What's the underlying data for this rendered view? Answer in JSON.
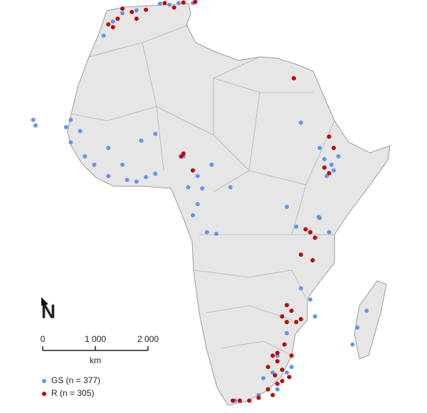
{
  "map": {
    "north_label": "N",
    "scale_bar": {
      "unit": "km",
      "ticks": [
        0,
        {
          "value": 1000,
          "label": "1 000"
        },
        {
          "value": 2000,
          "label": "2 000"
        }
      ]
    },
    "series": [
      {
        "name": "GS (n = 377)",
        "color": "#6495ed",
        "lon": [
          -2,
          3,
          7,
          10,
          5,
          -5,
          -7,
          -9,
          -17,
          -16,
          -13,
          -11,
          -8,
          -4,
          -2,
          0,
          2,
          -5,
          -8,
          -1,
          2,
          -16,
          -14,
          9,
          8,
          11,
          14,
          12,
          10,
          13,
          11,
          18,
          15,
          38,
          39.5,
          37,
          40,
          41,
          38.5,
          33,
          37,
          36.8,
          39,
          35,
          30,
          32,
          33,
          35,
          36,
          30,
          28,
          30,
          27,
          25,
          28,
          31,
          24,
          19,
          45,
          47,
          44,
          -23.5,
          -24
        ],
        "lat": [
          35.5,
          36.7,
          36.8,
          36.8,
          36.5,
          35,
          33.5,
          31,
          14.7,
          12,
          9.5,
          8,
          6,
          5.3,
          5,
          5.8,
          6.4,
          8,
          11,
          12.3,
          13.5,
          16,
          14,
          4,
          9.5,
          6,
          8,
          3.8,
          -1,
          -4,
          1,
          4,
          -4.3,
          9,
          8,
          11,
          7,
          9.5,
          6,
          15.5,
          -1.5,
          -1.3,
          -4,
          -4,
          0.5,
          -3,
          -14,
          -16,
          -19,
          -22,
          -26,
          -29,
          -29,
          -30,
          -32,
          -28,
          -33,
          -34,
          -21,
          -18,
          -24,
          15,
          16
        ]
      },
      {
        "name": "R (n = 305)",
        "color": "#c00000",
        "lon": [
          -5,
          -3,
          0,
          4,
          8,
          10.5,
          -6,
          -7,
          -2,
          6,
          -8,
          8,
          7.5,
          10,
          31.5,
          39,
          40,
          38,
          39,
          35,
          36,
          34,
          33,
          35.5,
          30,
          31,
          32,
          29,
          33,
          30,
          27,
          28,
          26,
          29,
          27.5,
          30.5,
          28,
          26,
          29,
          24,
          20,
          22,
          18.5,
          27,
          31,
          29.5,
          28
        ],
        "lat": [
          35.8,
          35.2,
          35.6,
          36.8,
          36.9,
          37,
          34,
          32.5,
          34,
          36,
          33,
          10,
          9.5,
          7,
          23.4,
          13,
          11,
          7.5,
          6.5,
          -4,
          -5,
          -3.5,
          -8,
          -9,
          -17,
          -18,
          -20,
          -19,
          -19.5,
          -20,
          -26,
          -27,
          -28,
          -28.5,
          -29.5,
          -29.8,
          -31,
          -32,
          -30.5,
          -33.5,
          -34,
          -34,
          -34,
          -33,
          -26,
          -24,
          -25.5
        ]
      }
    ]
  }
}
